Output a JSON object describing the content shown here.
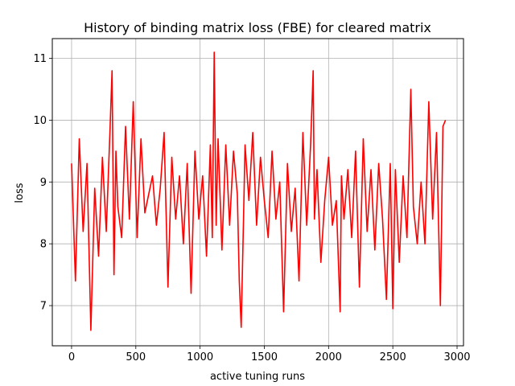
{
  "chart_data": {
    "type": "line",
    "title": "History of binding matrix loss (FBE) for cleared matrix",
    "xlabel": "active tuning runs",
    "ylabel": "loss",
    "xlim": [
      -150,
      3050
    ],
    "ylim": [
      6.35,
      11.32
    ],
    "xticks": [
      0,
      500,
      1000,
      1500,
      2000,
      2500,
      3000
    ],
    "yticks": [
      7,
      8,
      9,
      10,
      11
    ],
    "grid": true,
    "line_color": "#ff0000",
    "series": [
      {
        "x": [
          0,
          30,
          60,
          90,
          120,
          150,
          180,
          210,
          240,
          270,
          300,
          315,
          330,
          345,
          360,
          390,
          420,
          450,
          480,
          510,
          540,
          570,
          600,
          630,
          660,
          690,
          720,
          750,
          780,
          810,
          840,
          870,
          900,
          930,
          960,
          990,
          1020,
          1050,
          1080,
          1095,
          1110,
          1125,
          1140,
          1170,
          1200,
          1230,
          1260,
          1290,
          1305,
          1320,
          1335,
          1350,
          1380,
          1410,
          1440,
          1470,
          1500,
          1530,
          1560,
          1590,
          1620,
          1650,
          1680,
          1710,
          1740,
          1770,
          1800,
          1830,
          1860,
          1880,
          1890,
          1910,
          1940,
          1970,
          2000,
          2030,
          2060,
          2090,
          2100,
          2120,
          2150,
          2180,
          2210,
          2240,
          2270,
          2300,
          2330,
          2360,
          2390,
          2420,
          2450,
          2480,
          2500,
          2520,
          2550,
          2580,
          2610,
          2640,
          2660,
          2690,
          2720,
          2750,
          2780,
          2810,
          2840,
          2870,
          2890,
          2910
        ],
        "y": [
          9.3,
          7.4,
          9.7,
          8.2,
          9.3,
          6.6,
          8.9,
          7.8,
          9.4,
          8.2,
          9.9,
          10.8,
          7.5,
          9.5,
          8.6,
          8.1,
          9.9,
          8.4,
          10.3,
          8.1,
          9.7,
          8.5,
          8.8,
          9.1,
          8.3,
          8.9,
          9.8,
          7.3,
          9.4,
          8.4,
          9.1,
          8.0,
          9.3,
          7.2,
          9.5,
          8.4,
          9.1,
          7.8,
          9.6,
          8.1,
          11.1,
          8.3,
          9.7,
          7.9,
          9.6,
          8.3,
          9.5,
          8.8,
          7.4,
          6.65,
          8.1,
          9.6,
          8.7,
          9.8,
          8.3,
          9.4,
          8.7,
          8.1,
          9.5,
          8.4,
          9.0,
          6.9,
          9.3,
          8.2,
          8.9,
          7.4,
          9.8,
          8.3,
          9.6,
          10.8,
          8.4,
          9.2,
          7.7,
          8.7,
          9.4,
          8.3,
          8.7,
          6.9,
          9.1,
          8.4,
          9.2,
          8.1,
          9.5,
          7.3,
          9.7,
          8.2,
          9.2,
          7.9,
          9.3,
          8.4,
          7.1,
          9.3,
          6.95,
          9.2,
          7.7,
          9.1,
          8.1,
          10.5,
          8.6,
          8.0,
          9.0,
          8.0,
          10.3,
          8.4,
          9.8,
          7.0,
          9.9,
          10.0
        ]
      }
    ]
  }
}
